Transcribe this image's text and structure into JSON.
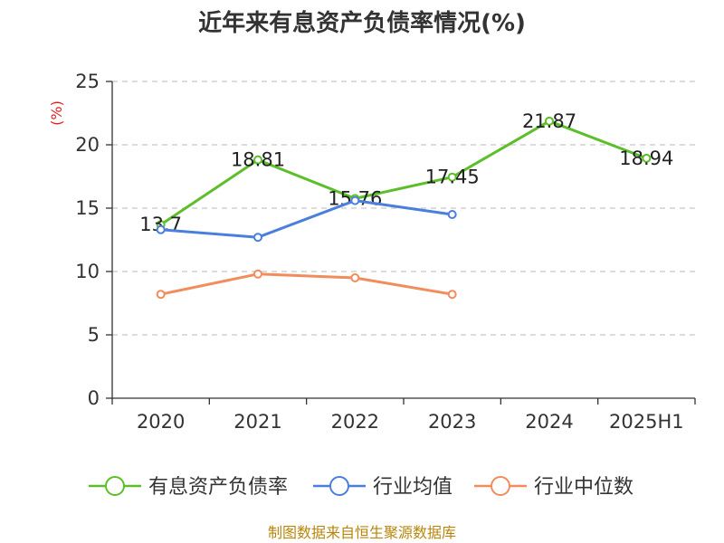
{
  "chart_data": {
    "type": "line",
    "title": "近年来有息资产负债率情况(%)",
    "unit": "(%)",
    "xlabel": "",
    "ylabel": "",
    "categories": [
      "2020",
      "2021",
      "2022",
      "2023",
      "2024",
      "2025H1"
    ],
    "ylim": [
      0,
      25
    ],
    "yticks": [
      0,
      5,
      10,
      15,
      20,
      25
    ],
    "grid": true,
    "legend_position": "bottom",
    "series": [
      {
        "name": "有息资产负债率",
        "color": "#5cbf2a",
        "values": [
          13.7,
          18.81,
          15.76,
          17.45,
          21.87,
          18.94
        ],
        "labels": [
          "13.7",
          "18.81",
          "15.76",
          "17.45",
          "21.87",
          "18.94"
        ]
      },
      {
        "name": "行业均值",
        "color": "#4a7fdc",
        "values": [
          13.3,
          12.7,
          15.6,
          14.5,
          null,
          null
        ]
      },
      {
        "name": "行业中位数",
        "color": "#f28c5c",
        "values": [
          8.2,
          9.8,
          9.5,
          8.2,
          null,
          null
        ]
      }
    ]
  },
  "source": "制图数据来自恒生聚源数据库"
}
